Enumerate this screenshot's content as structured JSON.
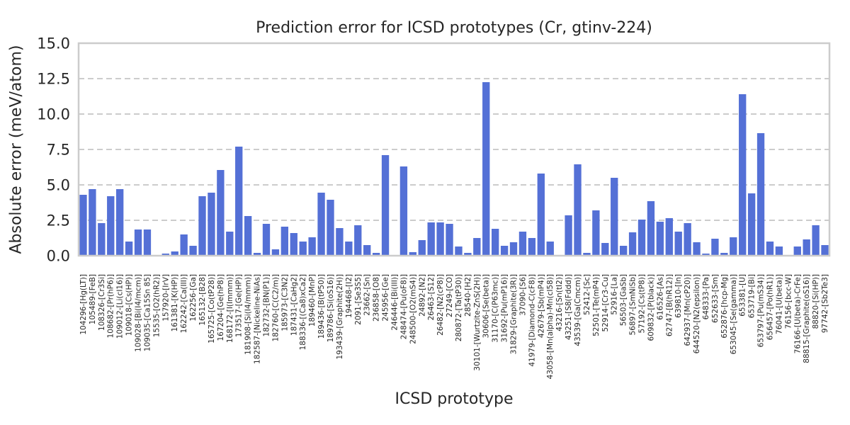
{
  "chart_data": {
    "type": "bar",
    "title": "Prediction error for ICSD prototypes (Cr, gtinv-224)",
    "xlabel": "ICSD prototype",
    "ylabel": "Absolute error (meV/atom)",
    "ylim": [
      0,
      15
    ],
    "yticks": [
      "0.0",
      "2.5",
      "5.0",
      "7.5",
      "10.0",
      "12.5",
      "15.0"
    ],
    "grid": "horizontal dashed",
    "bar_color": "#5470d6",
    "categories": [
      "104296-[Hg(LT)]",
      "105489-[FeB]",
      "108326-[Cr3Si]",
      "108682-[Pr(hP6)]",
      "109012-[Li(cI16)]",
      "109018-[Cs(HP)]",
      "109028-[Bi(I4/mcm)]",
      "109035-[Ca15Sn 85]",
      "15535-[O2(hR2)]",
      "157920-[IrV]",
      "161381-[K(HP)]",
      "162242-[Ca(III)]",
      "162256-[Ga]",
      "165132-[B28]",
      "165725-[Co(tP28)]",
      "167204-[Ge(hP8)]",
      "168172-[I(Immm)]",
      "173517-[Ge(HP)]",
      "181908-[Si(I4/mmm)]",
      "182587-[Nickeline-NiAs]",
      "182732-[BN(P1)]",
      "182760-[C(C2/m)]",
      "185973-[C3N2]",
      "187431-[CaHg2]",
      "188336-[(Ca8)xCa2]",
      "189460-[MnP]",
      "189436-[B(tP50)]",
      "189786-[Si(oS16)]",
      "193439-[Graphite(2H)]",
      "194468-[I2]",
      "2091-[Se3S5]",
      "23662-[Sn]",
      "236858-[O8]",
      "245956-[Ge]",
      "246446-[Bi(III)]",
      "248474-[Pu(oF8)]",
      "248500-[O2(mS4)]",
      "24892-[N2]",
      "26463-[S12]",
      "26482-[N2(cP8)]",
      "27249-[CO]",
      "280872-[Ta(tP30)]",
      "28540-[H2]",
      "30101-[Wurtzite-ZnS(2H)]",
      "30606-[Se(beta)]",
      "31170-[C(P63mc)]",
      "31692-[Pu(mP16)]",
      "31829-[Graphite(3R)]",
      "37090-[S6]",
      "41979-[Diamond-C(cF8)]",
      "42679-[Sb(mP4)]",
      "43058-[Mn(alpha)-Mn(cI58)]",
      "43216-[Sn(tI2)]",
      "43251-[S8(Fddd)]",
      "43539-[Ga(Cmcm)]",
      "52412-[Sc]",
      "52501-[Te(mP4)]",
      "52914-[Cr3-Cu]",
      "52916-[La]",
      "56503-[GaSb]",
      "56897-[SmNiSb]",
      "57192-[Cs(tP8)]",
      "609832-[P(black)]",
      "616526-[As]",
      "62747-[B(hR12)]",
      "639810-[In]",
      "642937-[Mn(cP20)]",
      "644520-[N2(epsilon)]",
      "648333-[Pa]",
      "652633-[Sm]",
      "652876-[hcp-Mg]",
      "653045-[Se(gamma)]",
      "653381-[U]",
      "653719-[Bi]",
      "653797-[Pu(mS34)]",
      "656457-[Po(hR1)]",
      "76041-[U(beta)]",
      "76156-[bcc-W]",
      "76166-[U(beta)-CrFe]",
      "88815-[Graphite(oS16)]",
      "88820-[Si(HP)]",
      "97742-[Sb2Te3]"
    ],
    "values": [
      4.3,
      4.7,
      2.3,
      4.2,
      4.7,
      1.0,
      1.85,
      1.85,
      0.05,
      0.15,
      0.3,
      1.5,
      0.7,
      4.2,
      4.45,
      6.05,
      1.7,
      7.7,
      2.8,
      0.2,
      2.25,
      0.45,
      2.05,
      1.6,
      1.0,
      1.3,
      4.45,
      3.95,
      1.95,
      1.0,
      2.15,
      0.75,
      0.2,
      7.1,
      0.05,
      6.3,
      0.25,
      1.1,
      2.35,
      2.35,
      2.25,
      0.65,
      0.2,
      1.25,
      12.25,
      1.9,
      0.7,
      0.95,
      1.7,
      1.25,
      5.8,
      1.0,
      0.05,
      2.85,
      6.45,
      0.2,
      3.2,
      0.9,
      5.5,
      0.7,
      1.65,
      2.55,
      3.85,
      2.4,
      2.65,
      1.7,
      2.3,
      0.95,
      0.15,
      1.2,
      0.2,
      1.3,
      11.4,
      4.4,
      8.65,
      1.0,
      0.65,
      0.05,
      0.65,
      1.15,
      2.15,
      0.75
    ]
  }
}
